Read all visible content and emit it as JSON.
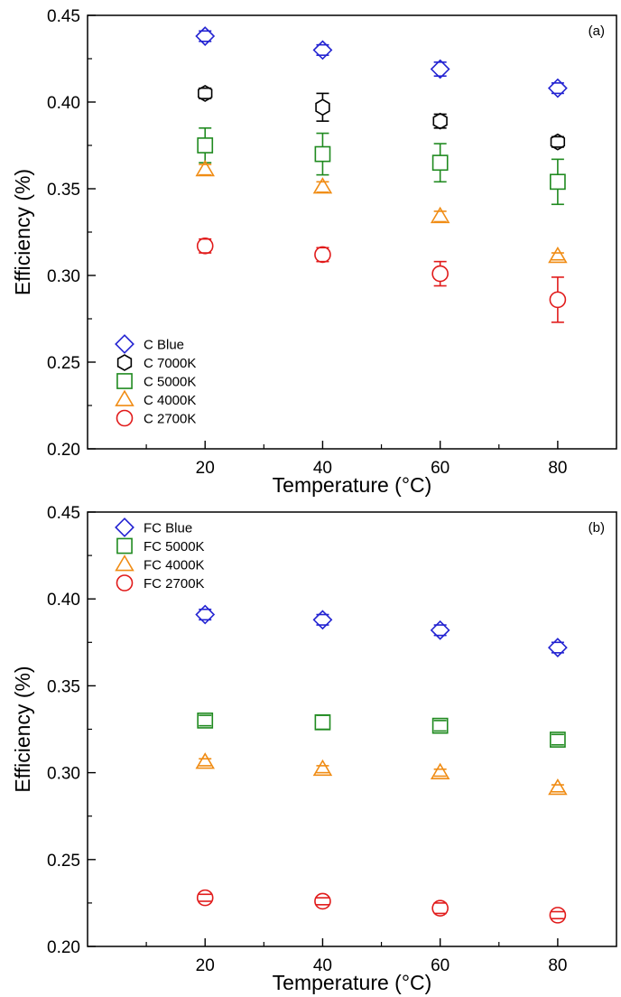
{
  "chart_data": [
    {
      "type": "scatter",
      "panel_label": "(a)",
      "xlabel": "Temperature (°C)",
      "ylabel": "Efficiency (%)",
      "xlim": [
        0,
        90
      ],
      "ylim": [
        0.2,
        0.45
      ],
      "x_ticks": [
        "20",
        "40",
        "60",
        "80"
      ],
      "y_ticks": [
        "0.20",
        "0.25",
        "0.30",
        "0.35",
        "0.40",
        "0.45"
      ],
      "legend_position": "bottom-left",
      "grid": false,
      "x": [
        20,
        40,
        60,
        80
      ],
      "series": [
        {
          "name": "C Blue",
          "marker": "diamond",
          "color": "#2323d2",
          "values": [
            0.438,
            0.43,
            0.419,
            0.408
          ],
          "errors": [
            0.003,
            0.003,
            0.004,
            0.003
          ]
        },
        {
          "name": "C 7000K",
          "marker": "hexagon",
          "color": "#000000",
          "values": [
            0.405,
            0.397,
            0.389,
            0.377
          ],
          "errors": [
            0.003,
            0.008,
            0.004,
            0.003
          ]
        },
        {
          "name": "C 5000K",
          "marker": "square",
          "color": "#1f8a1f",
          "values": [
            0.375,
            0.37,
            0.365,
            0.354
          ],
          "errors": [
            0.01,
            0.012,
            0.011,
            0.013
          ]
        },
        {
          "name": "C 4000K",
          "marker": "triangle",
          "color": "#f08c14",
          "values": [
            0.361,
            0.351,
            0.334,
            0.311
          ],
          "errors": [
            0.003,
            0.003,
            0.003,
            0.002
          ]
        },
        {
          "name": "C 2700K",
          "marker": "circle",
          "color": "#e11b1b",
          "values": [
            0.317,
            0.312,
            0.301,
            0.286
          ],
          "errors": [
            0.004,
            0.004,
            0.007,
            0.013
          ]
        }
      ]
    },
    {
      "type": "scatter",
      "panel_label": "(b)",
      "xlabel": "Temperature (°C)",
      "ylabel": "Efficiency (%)",
      "xlim": [
        0,
        90
      ],
      "ylim": [
        0.2,
        0.45
      ],
      "x_ticks": [
        "20",
        "40",
        "60",
        "80"
      ],
      "y_ticks": [
        "0.20",
        "0.25",
        "0.30",
        "0.35",
        "0.40",
        "0.45"
      ],
      "legend_position": "top-left",
      "grid": false,
      "x": [
        20,
        40,
        60,
        80
      ],
      "series": [
        {
          "name": "FC Blue",
          "marker": "diamond",
          "color": "#2323d2",
          "values": [
            0.391,
            0.388,
            0.382,
            0.372
          ],
          "errors": [
            0.003,
            0.003,
            0.003,
            0.003
          ]
        },
        {
          "name": "FC 5000K",
          "marker": "square",
          "color": "#1f8a1f",
          "values": [
            0.33,
            0.329,
            0.327,
            0.319
          ],
          "errors": [
            0.003,
            0.004,
            0.003,
            0.003
          ]
        },
        {
          "name": "FC 4000K",
          "marker": "triangle",
          "color": "#f08c14",
          "values": [
            0.306,
            0.302,
            0.3,
            0.291
          ],
          "errors": [
            0.002,
            0.002,
            0.002,
            0.002
          ]
        },
        {
          "name": "FC 2700K",
          "marker": "circle",
          "color": "#e11b1b",
          "values": [
            0.228,
            0.226,
            0.222,
            0.218
          ],
          "errors": [
            0.002,
            0.002,
            0.003,
            0.002
          ]
        }
      ]
    }
  ]
}
